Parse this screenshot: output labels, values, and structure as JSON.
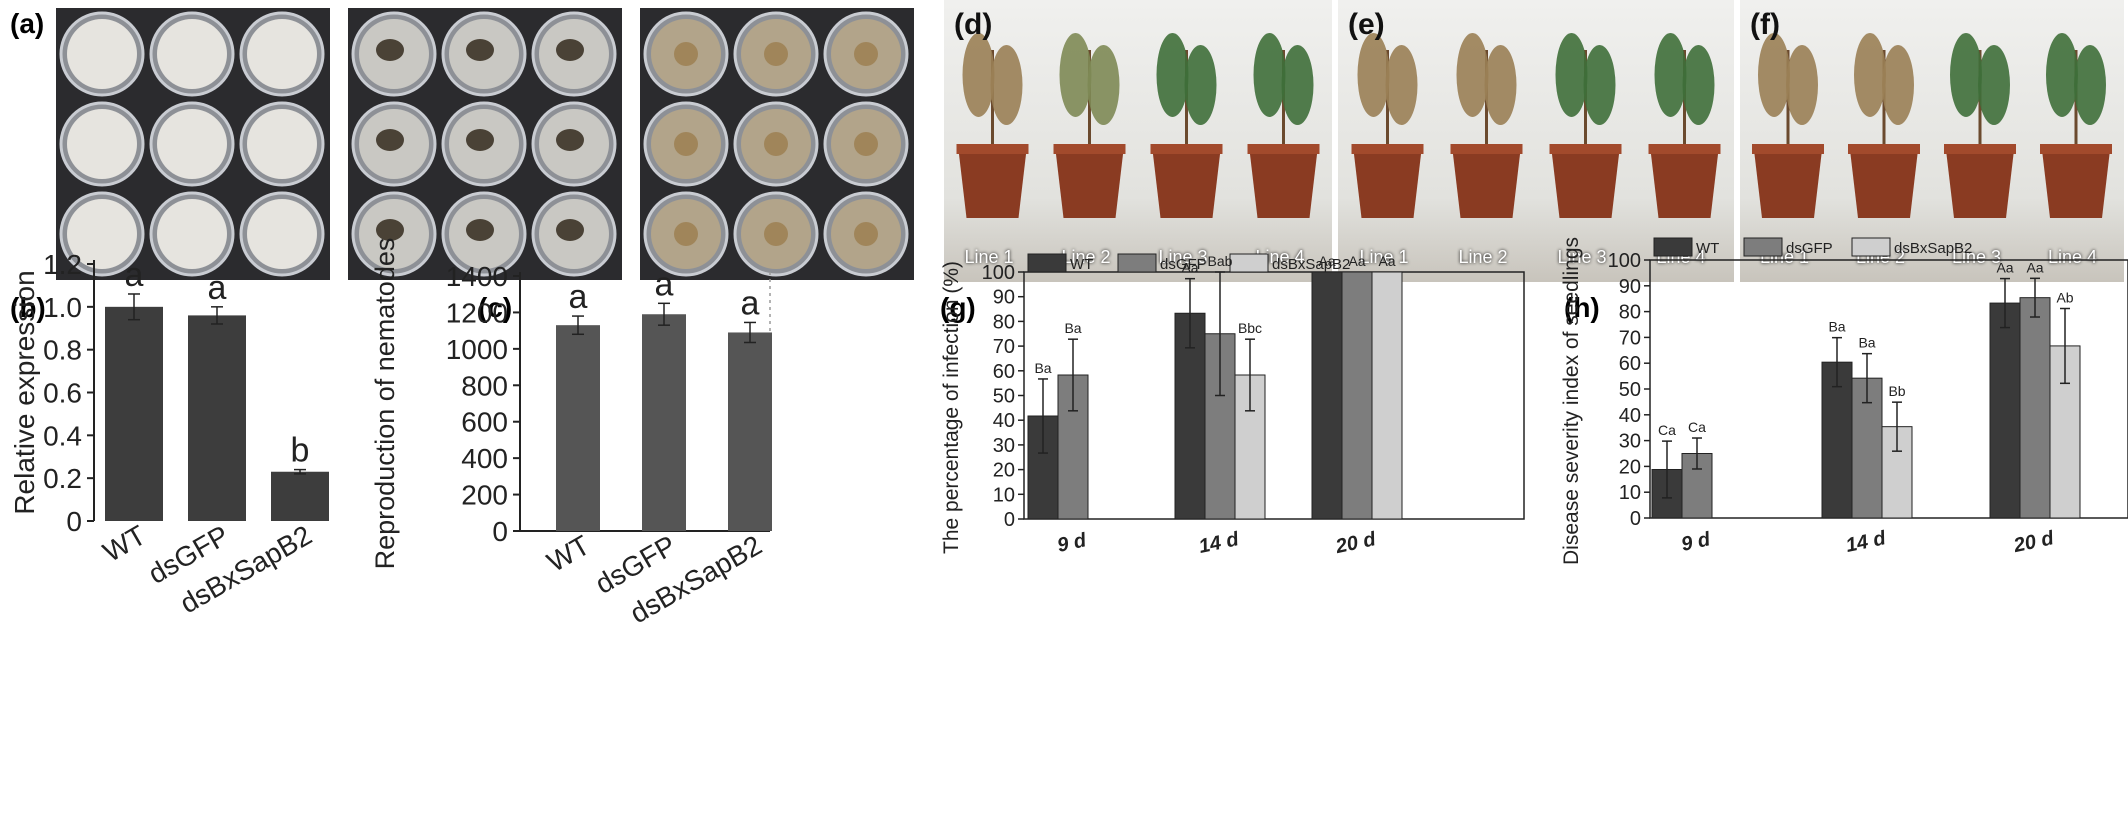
{
  "panels": {
    "a": "(a)",
    "b": "(b)",
    "c": "(c)",
    "d": "(d)",
    "e": "(e)",
    "f": "(f)",
    "g": "(g)",
    "h": "(h)"
  },
  "photos": {
    "line_labels": [
      "Line 1",
      "Line 2",
      "Line 3",
      "Line 4"
    ],
    "plate_colors": [
      "#e6e4df",
      "#c9c8c3",
      "#b2a48a"
    ]
  },
  "chart_data": [
    {
      "id": "b",
      "type": "bar",
      "categories": [
        "WT",
        "dsGFP",
        "dsBxSapB2"
      ],
      "values": [
        1.0,
        0.96,
        0.23
      ],
      "errors": [
        0.06,
        0.04,
        0.01
      ],
      "letters": [
        "a",
        "a",
        "b"
      ],
      "ylabel": "Relative expression",
      "ylim": [
        0,
        1.2
      ],
      "yticks": [
        "0",
        "0.2",
        "0.4",
        "0.6",
        "0.8",
        "1.0",
        "1.2"
      ],
      "bar_color": "#3d3d3d"
    },
    {
      "id": "c",
      "type": "bar",
      "categories": [
        "WT",
        "dsGFP",
        "dsBxSapB2"
      ],
      "values": [
        1130,
        1190,
        1090
      ],
      "errors": [
        50,
        60,
        55
      ],
      "letters": [
        "a",
        "a",
        "a"
      ],
      "ylabel": "Reproduction of nematodes",
      "ylim": [
        0,
        1400
      ],
      "yticks": [
        "0",
        "200",
        "400",
        "600",
        "800",
        "1000",
        "1200",
        "1400"
      ],
      "bar_color": "#555555"
    },
    {
      "id": "g",
      "type": "bar",
      "categories": [
        "9 d",
        "14 d",
        "20 d"
      ],
      "series": [
        {
          "name": "WT",
          "color": "#3a3a3a",
          "values": [
            41.7,
            83.3,
            100
          ],
          "errors": [
            15,
            14,
            0
          ],
          "letters": [
            "Ba",
            "Aa",
            "Aa"
          ]
        },
        {
          "name": "dsGFP",
          "color": "#7d7d7d",
          "values": [
            58.3,
            75,
            100
          ],
          "errors": [
            14.5,
            25,
            0
          ],
          "letters": [
            "Ba",
            "Bab",
            "Aa"
          ]
        },
        {
          "name": "dsBxSapB2",
          "color": "#cfcfcf",
          "values": [
            0,
            58.3,
            100
          ],
          "errors": [
            0,
            14.5,
            0
          ],
          "letters": [
            "",
            "Bbc",
            "Aa"
          ]
        }
      ],
      "ylabel": "The percentage of infection (%)",
      "ylim": [
        0,
        100
      ],
      "yticks": [
        "0",
        "10",
        "20",
        "30",
        "40",
        "50",
        "60",
        "70",
        "80",
        "90",
        "100"
      ]
    },
    {
      "id": "h",
      "type": "bar",
      "categories": [
        "9 d",
        "14 d",
        "20 d"
      ],
      "series": [
        {
          "name": "WT",
          "color": "#3a3a3a",
          "values": [
            18.8,
            60.4,
            83.3
          ],
          "errors": [
            11,
            9.5,
            9.5
          ],
          "letters": [
            "Ca",
            "Ba",
            "Aa"
          ]
        },
        {
          "name": "dsGFP",
          "color": "#7d7d7d",
          "values": [
            25,
            54.2,
            85.4
          ],
          "errors": [
            6,
            9.5,
            7.5
          ],
          "letters": [
            "Ca",
            "Ba",
            "Aa"
          ]
        },
        {
          "name": "dsBxSapB2",
          "color": "#cfcfcf",
          "values": [
            0,
            35.4,
            66.7
          ],
          "errors": [
            0,
            9.5,
            14.5
          ],
          "letters": [
            "",
            "Bb",
            "Ab"
          ]
        }
      ],
      "ylabel": "Disease severity index of seedlings",
      "ylim": [
        0,
        100
      ],
      "yticks": [
        "0",
        "10",
        "20",
        "30",
        "40",
        "50",
        "60",
        "70",
        "80",
        "90",
        "100"
      ]
    }
  ]
}
